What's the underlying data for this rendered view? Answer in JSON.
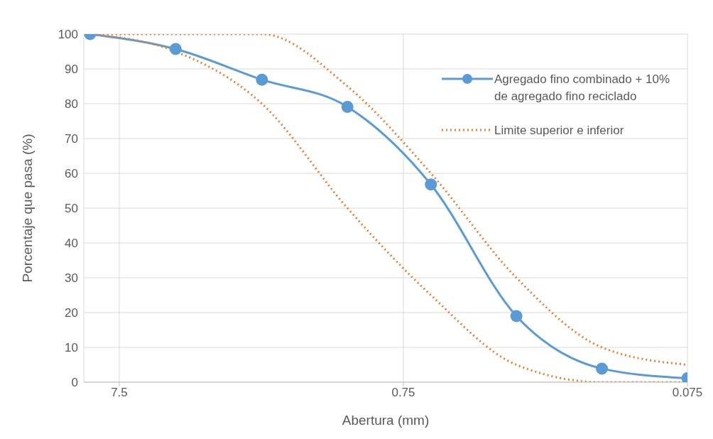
{
  "chart_data": {
    "type": "line",
    "xlabel": "Abertura (mm)",
    "ylabel": "Porcentaje que pasa (%)",
    "x": [
      9.5,
      4.75,
      2.36,
      1.18,
      0.6,
      0.3,
      0.15,
      0.075
    ],
    "series": [
      {
        "name": "Agregado fino combinado + 10% de agregado fino reciclado",
        "color": "#5b9bd5",
        "marker": "circle",
        "line_style": "solid",
        "values": [
          100,
          95.7,
          86.9,
          79.1,
          56.8,
          19,
          3.9,
          1.1
        ]
      },
      {
        "name": "Limite superior e inferior",
        "color": "#ed7d31",
        "marker": "none",
        "line_style": "dotted",
        "values": [
          100,
          100,
          100,
          85,
          60,
          30,
          10,
          5
        ]
      },
      {
        "color": "#ed7d31",
        "marker": "none",
        "line_style": "dotted",
        "values": [
          100,
          95,
          80,
          50,
          25,
          5,
          0,
          0
        ]
      }
    ],
    "log": "x",
    "xlim": [
      10,
      0.075
    ],
    "xticks": [
      7.5,
      0.75,
      0.075
    ],
    "ylim": [
      0,
      100
    ],
    "yticks": [
      0,
      10,
      20,
      30,
      40,
      50,
      60,
      70,
      80,
      90,
      100
    ],
    "grid": true,
    "legend": "top right"
  }
}
